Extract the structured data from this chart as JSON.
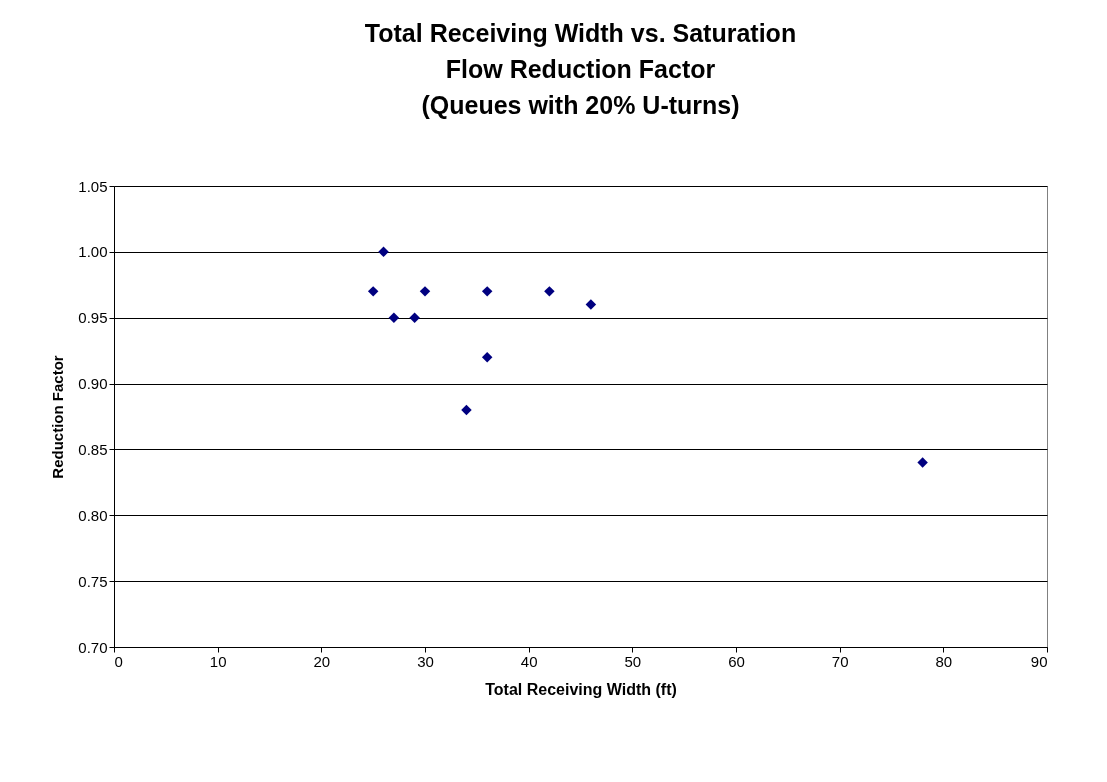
{
  "chart_data": {
    "type": "scatter",
    "title": "Total Receiving Width vs. Saturation\nFlow Reduction Factor\n(Queues with 20% U-turns)",
    "xlabel": "Total Receiving Width (ft)",
    "ylabel": "Reduction Factor",
    "x": [
      25,
      26,
      27,
      29,
      30,
      34,
      36,
      36,
      42,
      46,
      78
    ],
    "series": [
      {
        "color": "#000080",
        "values": [
          0.97,
          1.0,
          0.95,
          0.95,
          0.97,
          0.88,
          0.97,
          0.92,
          0.97,
          0.96,
          0.84
        ]
      }
    ],
    "xlim": [
      0,
      90
    ],
    "xticks": [
      0,
      10,
      20,
      30,
      40,
      50,
      60,
      70,
      80,
      90
    ],
    "ylim": [
      0.7,
      1.05
    ],
    "yticks": [
      {
        "value": 0.7,
        "label": "0.70"
      },
      0.75,
      {
        "value": 0.8,
        "label": "0.80"
      },
      0.85,
      {
        "value": 0.9,
        "label": "0.90"
      },
      0.95,
      {
        "value": 1.0,
        "label": "1.00"
      },
      1.05
    ],
    "grid": "y",
    "marker": "diamond"
  }
}
